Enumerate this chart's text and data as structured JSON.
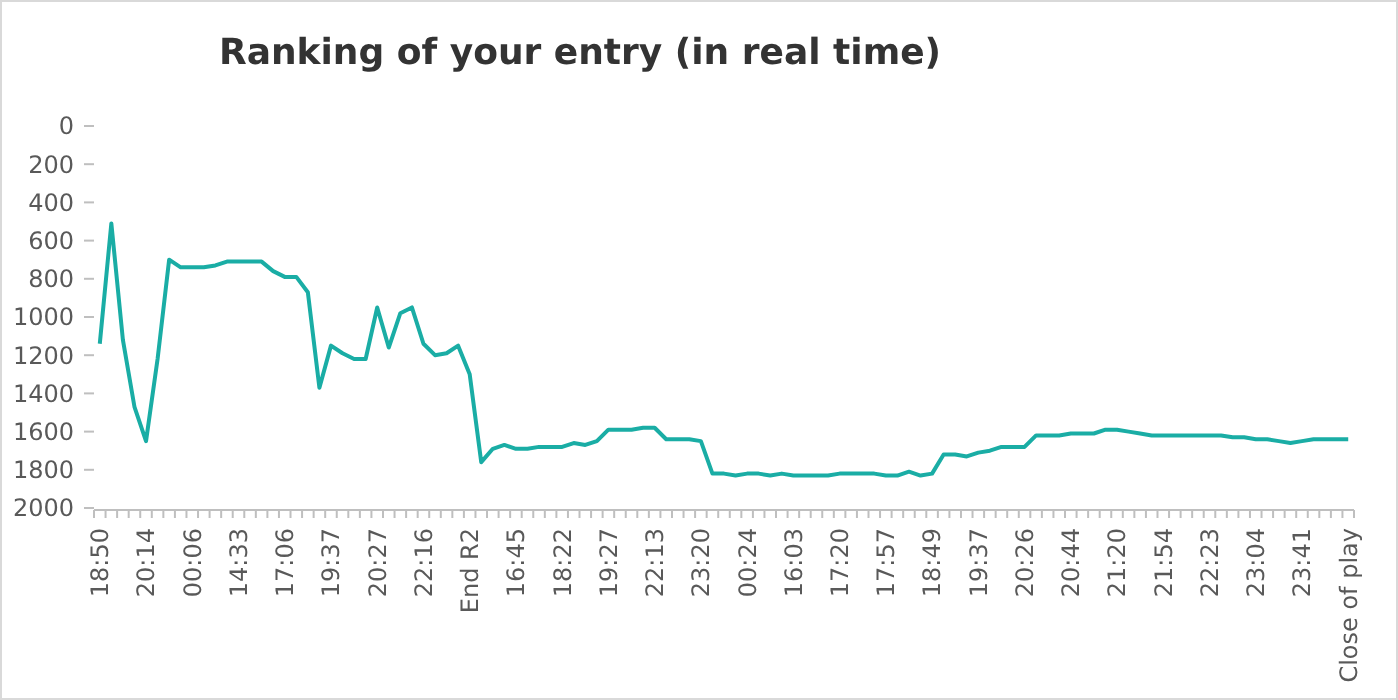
{
  "chart_data": {
    "type": "line",
    "title": "Ranking of your entry (in real time)",
    "categories": [
      "18:50",
      null,
      null,
      null,
      "20:14",
      null,
      null,
      null,
      "00:06",
      null,
      null,
      null,
      "14:33",
      null,
      null,
      null,
      "17:06",
      null,
      null,
      null,
      "19:37",
      null,
      null,
      null,
      "20:27",
      null,
      null,
      null,
      "22:16",
      null,
      null,
      null,
      "End R2",
      null,
      null,
      null,
      "16:45",
      null,
      null,
      null,
      "18:22",
      null,
      null,
      null,
      "19:27",
      null,
      null,
      null,
      "22:13",
      null,
      null,
      null,
      "23:20",
      null,
      null,
      null,
      "00:24",
      null,
      null,
      null,
      "16:03",
      null,
      null,
      null,
      "17:20",
      null,
      null,
      null,
      "17:57",
      null,
      null,
      null,
      "18:49",
      null,
      null,
      null,
      "19:37",
      null,
      null,
      null,
      "20:26",
      null,
      null,
      null,
      "20:44",
      null,
      null,
      null,
      "21:20",
      null,
      null,
      null,
      "21:54",
      null,
      null,
      null,
      "22:23",
      null,
      null,
      null,
      "23:04",
      null,
      null,
      null,
      "23:41",
      null,
      null,
      null,
      "Close of play"
    ],
    "series": [
      {
        "color": "#1aada5",
        "values": [
          1140,
          510,
          1120,
          1470,
          1650,
          1220,
          700,
          740,
          740,
          740,
          730,
          710,
          710,
          710,
          710,
          760,
          790,
          790,
          870,
          1370,
          1150,
          1190,
          1220,
          1220,
          950,
          1160,
          980,
          950,
          1140,
          1200,
          1190,
          1150,
          1300,
          1760,
          1690,
          1670,
          1690,
          1690,
          1680,
          1680,
          1680,
          1660,
          1670,
          1650,
          1590,
          1590,
          1590,
          1580,
          1580,
          1640,
          1640,
          1640,
          1650,
          1820,
          1820,
          1830,
          1820,
          1820,
          1830,
          1820,
          1830,
          1830,
          1830,
          1830,
          1820,
          1820,
          1820,
          1820,
          1830,
          1830,
          1810,
          1830,
          1820,
          1720,
          1720,
          1730,
          1710,
          1700,
          1680,
          1680,
          1680,
          1620,
          1620,
          1620,
          1610,
          1610,
          1610,
          1590,
          1590,
          1600,
          1610,
          1620,
          1620,
          1620,
          1620,
          1620,
          1620,
          1620,
          1630,
          1630,
          1640,
          1640,
          1650,
          1660,
          1650,
          1640,
          1640,
          1640,
          1640
        ]
      }
    ],
    "ylim": [
      2000,
      0
    ],
    "yticks": [
      0,
      200,
      400,
      600,
      800,
      1000,
      1200,
      1400,
      1600,
      1800,
      2000
    ],
    "grid": false,
    "marker": "none",
    "line_style": "solid"
  }
}
